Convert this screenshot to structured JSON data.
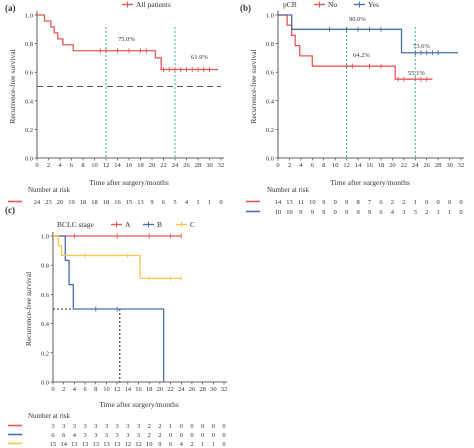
{
  "panels": [
    {
      "panel_label": "(a)",
      "legend_title": "",
      "ylabel": "Recurrence-free survival",
      "xlabel": "Time after surgery/months",
      "risk_header": "Number at risk",
      "annotations": [
        "75.0%",
        "61.9%"
      ]
    },
    {
      "panel_label": "(b)",
      "legend_title": "pCR",
      "ylabel": "Recurrence-free survival",
      "xlabel": "Time after surgery/months",
      "risk_header": "Number at risk",
      "annotations": [
        "90.0%",
        "73.6%",
        "64.2%",
        "55.1%"
      ]
    },
    {
      "panel_label": "(c)",
      "legend_title": "BCLC stage",
      "ylabel": "Recurrence-free survival",
      "xlabel": "Time after surgery/months",
      "risk_header": "Number at risk",
      "annotations": []
    }
  ],
  "colors": {
    "red": "#e8575a",
    "blue": "#4a6fb0",
    "yellow": "#f2c94c",
    "teal": "#2bb5a0",
    "grey": "#555555"
  },
  "chart_data": [
    {
      "type": "line",
      "xlim": [
        0,
        32
      ],
      "ylim": [
        0,
        1
      ],
      "xticks": [
        0,
        2,
        4,
        6,
        8,
        10,
        12,
        14,
        16,
        18,
        20,
        22,
        24,
        26,
        28,
        30,
        32
      ],
      "yticks": [
        0.0,
        0.2,
        0.4,
        0.6,
        0.8,
        1.0
      ],
      "series": [
        {
          "name": "All patients",
          "color": "red",
          "steps": [
            [
              0,
              1.0
            ],
            [
              1.3,
              0.958
            ],
            [
              2.4,
              0.917
            ],
            [
              3.0,
              0.875
            ],
            [
              3.6,
              0.833
            ],
            [
              4.5,
              0.792
            ],
            [
              6.3,
              0.75
            ],
            [
              20.6,
              0.7
            ],
            [
              21.6,
              0.619
            ],
            [
              31.5,
              0.619
            ]
          ],
          "censor": [
            11,
            12,
            14,
            16,
            18,
            19,
            22,
            23,
            24,
            25,
            26,
            27,
            28,
            29,
            30
          ],
          "risk": [
            "24",
            "23",
            "20",
            "19",
            "18",
            "18",
            "18",
            "16",
            "15",
            "13",
            "9",
            "6",
            "5",
            "4",
            "1",
            "1",
            "0"
          ]
        }
      ],
      "median_line": 0.5,
      "vlines": [
        12,
        24
      ]
    },
    {
      "type": "line",
      "xlim": [
        0,
        32
      ],
      "ylim": [
        0,
        1
      ],
      "xticks": [
        0,
        2,
        4,
        6,
        8,
        10,
        12,
        14,
        16,
        18,
        20,
        22,
        24,
        26,
        28,
        30,
        32
      ],
      "yticks": [
        0.0,
        0.2,
        0.4,
        0.6,
        0.8,
        1.0
      ],
      "series": [
        {
          "name": "No",
          "color": "red",
          "steps": [
            [
              0,
              1.0
            ],
            [
              1.6,
              0.929
            ],
            [
              2.4,
              0.857
            ],
            [
              3.0,
              0.786
            ],
            [
              3.8,
              0.714
            ],
            [
              6.0,
              0.642
            ],
            [
              20.5,
              0.551
            ],
            [
              27.0,
              0.551
            ]
          ],
          "censor": [
            12,
            13,
            16,
            18,
            21,
            22,
            24,
            25,
            26
          ],
          "risk": [
            "14",
            "13",
            "11",
            "10",
            "9",
            "9",
            "9",
            "8",
            "7",
            "6",
            "2",
            "2",
            "1",
            "0",
            "0",
            "0",
            "0"
          ]
        },
        {
          "name": "Yes",
          "color": "blue",
          "steps": [
            [
              0,
              1.0
            ],
            [
              2.4,
              0.9
            ],
            [
              21.6,
              0.736
            ],
            [
              31.5,
              0.736
            ]
          ],
          "censor": [
            9,
            12,
            14,
            16,
            18,
            24,
            25,
            26,
            27,
            28
          ],
          "risk": [
            "10",
            "10",
            "9",
            "9",
            "9",
            "9",
            "9",
            "9",
            "9",
            "6",
            "4",
            "3",
            "3",
            "2",
            "1",
            "1",
            "0"
          ]
        }
      ],
      "vlines": [
        12,
        24
      ]
    },
    {
      "type": "line",
      "xlim": [
        0,
        32
      ],
      "ylim": [
        0,
        1
      ],
      "xticks": [
        0,
        2,
        4,
        6,
        8,
        10,
        12,
        14,
        16,
        18,
        20,
        22,
        24,
        26,
        28,
        30,
        32
      ],
      "yticks": [
        0.0,
        0.2,
        0.4,
        0.6,
        0.8,
        1.0
      ],
      "series": [
        {
          "name": "A",
          "color": "red",
          "steps": [
            [
              0,
              1.0
            ],
            [
              24,
              1.0
            ]
          ],
          "censor": [
            4,
            12,
            18,
            22,
            24
          ],
          "risk": [
            "3",
            "3",
            "3",
            "3",
            "3",
            "3",
            "3",
            "3",
            "3",
            "2",
            "2",
            "1",
            "0",
            "0",
            "0",
            "0",
            "0"
          ]
        },
        {
          "name": "B",
          "color": "blue",
          "steps": [
            [
              0,
              1.0
            ],
            [
              2.3,
              0.833
            ],
            [
              3.0,
              0.667
            ],
            [
              3.8,
              0.5
            ],
            [
              20.7,
              0.0
            ]
          ],
          "censor": [
            8,
            12
          ],
          "risk": [
            "6",
            "6",
            "4",
            "3",
            "3",
            "3",
            "3",
            "3",
            "3",
            "2",
            "2",
            "0",
            "0",
            "0",
            "0",
            "0",
            "0"
          ]
        },
        {
          "name": "C",
          "color": "yellow",
          "steps": [
            [
              0,
              1.0
            ],
            [
              1.0,
              0.933
            ],
            [
              1.6,
              0.867
            ],
            [
              16.3,
              0.71
            ],
            [
              24,
              0.71
            ]
          ],
          "censor": [
            6,
            14,
            18,
            22,
            24
          ],
          "risk": [
            "15",
            "14",
            "13",
            "13",
            "13",
            "13",
            "13",
            "12",
            "12",
            "10",
            "9",
            "6",
            "4",
            "2",
            "1",
            "1",
            "0"
          ]
        }
      ],
      "median_line": 0.5,
      "vlines": [
        12.5
      ]
    }
  ]
}
